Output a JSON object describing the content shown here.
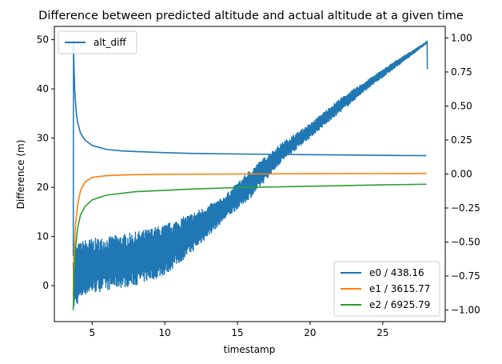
{
  "chart_data": {
    "type": "line",
    "title": "Difference between predicted altitude and actual altitude at a given time",
    "xlabel": "timestamp",
    "ylabel": "Difference (m)",
    "y2label": "",
    "xlim": [
      2.4,
      29.3
    ],
    "ylim": [
      -7.3,
      52.7
    ],
    "y2lim": [
      -1.085,
      1.085
    ],
    "xticks": [
      5,
      10,
      15,
      20,
      25
    ],
    "yticks": [
      0,
      10,
      20,
      30,
      40,
      50
    ],
    "y2ticks": [
      -1.0,
      -0.75,
      -0.5,
      -0.25,
      0.0,
      0.25,
      0.5,
      0.75,
      1.0
    ],
    "y2tick_labels": [
      "−1.00",
      "−0.75",
      "−0.50",
      "−0.25",
      "0.00",
      "0.25",
      "0.50",
      "0.75",
      "1.00"
    ],
    "grid": false,
    "legend_left": {
      "placement": "top-left",
      "entries": [
        "alt_diff"
      ]
    },
    "legend_right": {
      "placement": "bottom-right",
      "entries": [
        "e0 / 438.16",
        "e1 / 3615.77",
        "e2 / 6925.79"
      ]
    },
    "series": [
      {
        "name": "alt_diff",
        "axis": "left",
        "color": "#1f77b4",
        "style": "noisy-band",
        "x": [
          3.7,
          4.5,
          6,
          8,
          10,
          12,
          14,
          16,
          18,
          20,
          22,
          24,
          26,
          28.05
        ],
        "upper": [
          8,
          9.5,
          10,
          11,
          12.5,
          15,
          18,
          24,
          29,
          33,
          38,
          42,
          46,
          49.7
        ],
        "lower": [
          -5,
          -2,
          -1,
          0,
          2,
          7,
          13,
          18,
          25,
          30,
          35,
          40,
          44.5,
          49.2
        ]
      },
      {
        "name": "e0 / 438.16",
        "axis": "right",
        "color": "#1f77b4",
        "x": [
          3.7,
          3.75,
          3.8,
          3.9,
          4.0,
          4.2,
          4.5,
          5,
          6,
          7,
          8,
          10,
          12,
          15,
          20,
          25,
          28
        ],
        "y": [
          0.99,
          0.8,
          0.62,
          0.46,
          0.38,
          0.3,
          0.25,
          0.21,
          0.18,
          0.17,
          0.165,
          0.157,
          0.151,
          0.147,
          0.142,
          0.137,
          0.135
        ]
      },
      {
        "name": "e1 / 3615.77",
        "axis": "right",
        "color": "#ff7f0e",
        "x": [
          3.7,
          3.75,
          3.85,
          4.0,
          4.2,
          4.5,
          5,
          6,
          7,
          8,
          10,
          15,
          20,
          25,
          28
        ],
        "y": [
          -0.9,
          -0.62,
          -0.38,
          -0.23,
          -0.12,
          -0.06,
          -0.025,
          -0.012,
          -0.008,
          -0.005,
          -0.002,
          0.0,
          0.002,
          0.003,
          0.004
        ]
      },
      {
        "name": "e2 / 6925.79",
        "axis": "right",
        "color": "#2ca02c",
        "x": [
          3.7,
          3.75,
          3.85,
          4.0,
          4.2,
          4.5,
          5,
          6,
          8,
          10,
          12,
          15,
          20,
          25,
          28
        ],
        "y": [
          -1.0,
          -0.75,
          -0.55,
          -0.4,
          -0.3,
          -0.24,
          -0.19,
          -0.155,
          -0.13,
          -0.12,
          -0.11,
          -0.1,
          -0.09,
          -0.08,
          -0.075
        ]
      }
    ]
  }
}
